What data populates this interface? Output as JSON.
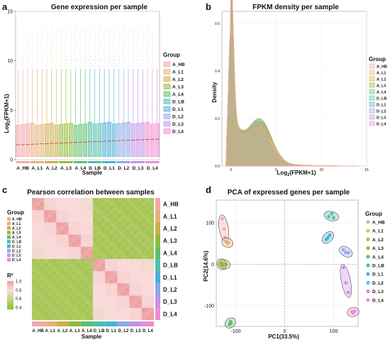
{
  "groups": [
    "A_HB",
    "A_L1",
    "A_L2",
    "A_L3",
    "A_L4",
    "D_LB",
    "D_L1",
    "D_L2",
    "D_L3",
    "D_L4"
  ],
  "group_colors": [
    "#f4a6a6",
    "#e8b07a",
    "#c8b04a",
    "#8fbc3b",
    "#5cbf6a",
    "#4fc0a8",
    "#4ab0d8",
    "#8fa8e8",
    "#c590e8",
    "#f08ad0"
  ],
  "panels": {
    "a": {
      "letter": "a",
      "chart_data": {
        "type": "box",
        "title": "Gene expression per sample",
        "xlabel": "Sample",
        "ylabel_main": "Log",
        "ylabel_sub": "2",
        "ylabel_tail": "(FPKM+1)",
        "ylim": [
          0,
          15
        ],
        "yticks": [
          "0",
          "5",
          "10",
          "15"
        ],
        "legend_title": "Group",
        "samples": 30,
        "median": 1.5,
        "q1": 0.3,
        "q3": 3.6,
        "whisker_high": 9.2,
        "outlier_max": 13.5,
        "legend": "right"
      }
    },
    "b": {
      "letter": "b",
      "chart_data": {
        "type": "area",
        "title": "FPKM density per sample",
        "xlabel_main": "Log",
        "xlabel_sub": "2",
        "xlabel_tail": "(FPKM+1)",
        "ylabel": "Density",
        "xlim": [
          -1,
          15
        ],
        "ylim": [
          0,
          0.65
        ],
        "xticks": [
          "0",
          "5",
          "10",
          "15"
        ],
        "yticks": [
          "0.0",
          "0.2",
          "0.4",
          "0.6"
        ],
        "legend_title": "Group",
        "legend": "right"
      }
    },
    "c": {
      "letter": "c",
      "chart_data": {
        "type": "heatmap",
        "title": "Pearson correlation between samples",
        "xlabel": "Sample",
        "legend_title": "Group",
        "scale_title": "R²",
        "scale_ticks": [
          "1.0",
          "0.8",
          "0.6",
          "0.4"
        ],
        "row_labels": [
          "A_HB",
          "A_L1",
          "A_L2",
          "A_L3",
          "A_L4",
          "D_LB",
          "D_L1",
          "D_L2",
          "D_L3",
          "D_L4"
        ],
        "col_labels": [
          "A_HB",
          "A_L1",
          "A_L2",
          "A_L3",
          "A_L4",
          "D_LB",
          "D_L1",
          "D_L2",
          "D_L3",
          "D_L4"
        ],
        "within_group_r2": 1.0,
        "within_stage_r2": 0.85,
        "between_stage_r2": 0.45
      }
    },
    "d": {
      "letter": "d",
      "chart_data": {
        "type": "scatter",
        "title": "PCA of expressed genes per sample",
        "xlabel": "PC1(33.5%)",
        "ylabel": "PC2(14.6%)",
        "xlim": [
          -140,
          150
        ],
        "ylim": [
          -150,
          155
        ],
        "xticks": [
          "-100",
          "0",
          "100"
        ],
        "xtick_values": [
          -100,
          0,
          100
        ],
        "yticks": [
          "100",
          "0",
          "-100"
        ],
        "ytick_values": [
          100,
          0,
          -100
        ],
        "legend_title": "Group",
        "legend": "right",
        "points": [
          {
            "group": "A_HB",
            "x": [
              -128,
              -124,
              -122
            ],
            "y": [
              110,
              85,
              65
            ]
          },
          {
            "group": "A_L1",
            "x": [
              -120,
              -117,
              -115
            ],
            "y": [
              55,
              50,
              52
            ]
          },
          {
            "group": "A_L2",
            "x": [
              -126,
              -124,
              -120
            ],
            "y": [
              2,
              -2,
              0
            ]
          },
          {
            "group": "A_L3",
            "x": [
              -130,
              -129,
              -128
            ],
            "y": [
              3,
              0,
              -3
            ]
          },
          {
            "group": "A_L4",
            "x": [
              -113,
              -111,
              -110
            ],
            "y": [
              -145,
              -138,
              -142
            ]
          },
          {
            "group": "D_LB",
            "x": [
              90,
              96,
              100
            ],
            "y": [
              115,
              122,
              112
            ]
          },
          {
            "group": "D_L1",
            "x": [
              85,
              88,
              92
            ],
            "y": [
              60,
              64,
              70
            ]
          },
          {
            "group": "D_L2",
            "x": [
              120,
              125,
              130
            ],
            "y": [
              35,
              28,
              28
            ]
          },
          {
            "group": "D_L3",
            "x": [
              120,
              125,
              130
            ],
            "y": [
              -8,
              -45,
              -68
            ]
          },
          {
            "group": "D_L4",
            "x": [
              137,
              140,
              143
            ],
            "y": [
              -115,
              -118,
              -113
            ]
          }
        ]
      }
    }
  }
}
